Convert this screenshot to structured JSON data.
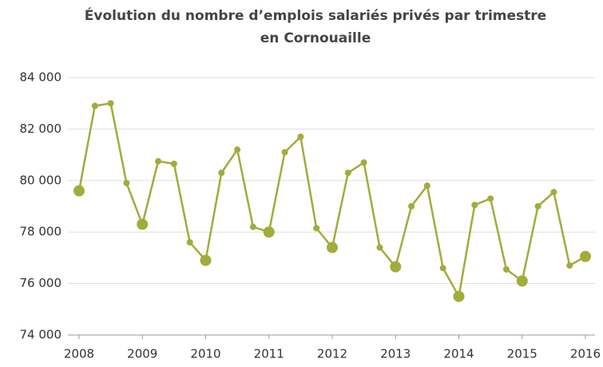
{
  "chart_data": {
    "type": "line",
    "title": [
      "Évolution du nombre d’emplois salariés privés par trimestre",
      "en Cornouaille"
    ],
    "x": [
      2008,
      2008.25,
      2008.5,
      2008.75,
      2009,
      2009.25,
      2009.5,
      2009.75,
      2010,
      2010.25,
      2010.5,
      2010.75,
      2011,
      2011.25,
      2011.5,
      2011.75,
      2012,
      2012.25,
      2012.5,
      2012.75,
      2013,
      2013.25,
      2013.5,
      2013.75,
      2014,
      2014.25,
      2014.5,
      2014.75,
      2015,
      2015.25,
      2015.5,
      2015.75,
      2016
    ],
    "series": [
      {
        "color": "#a3ab3c",
        "values": [
          79600,
          82900,
          83000,
          79900,
          78300,
          80750,
          80650,
          77600,
          76900,
          80300,
          81200,
          78200,
          78000,
          81100,
          81700,
          78150,
          77400,
          80300,
          80700,
          77400,
          76650,
          79000,
          79800,
          76600,
          75500,
          79050,
          79300,
          76550,
          76100,
          79000,
          79550,
          76700,
          77050
        ]
      }
    ],
    "xlim": [
      2008,
      2016
    ],
    "xticks": [
      2008,
      2009,
      2010,
      2011,
      2012,
      2013,
      2014,
      2015,
      2016
    ],
    "ylim": [
      74000,
      84000
    ],
    "yticks": [
      {
        "value": 74000,
        "label": "74 000"
      },
      {
        "value": 76000,
        "label": "76 000"
      },
      {
        "value": 78000,
        "label": "78 000"
      },
      {
        "value": 80000,
        "label": "80 000"
      },
      {
        "value": 82000,
        "label": "82 000"
      },
      {
        "value": 84000,
        "label": "84 000"
      }
    ],
    "grid": true
  }
}
